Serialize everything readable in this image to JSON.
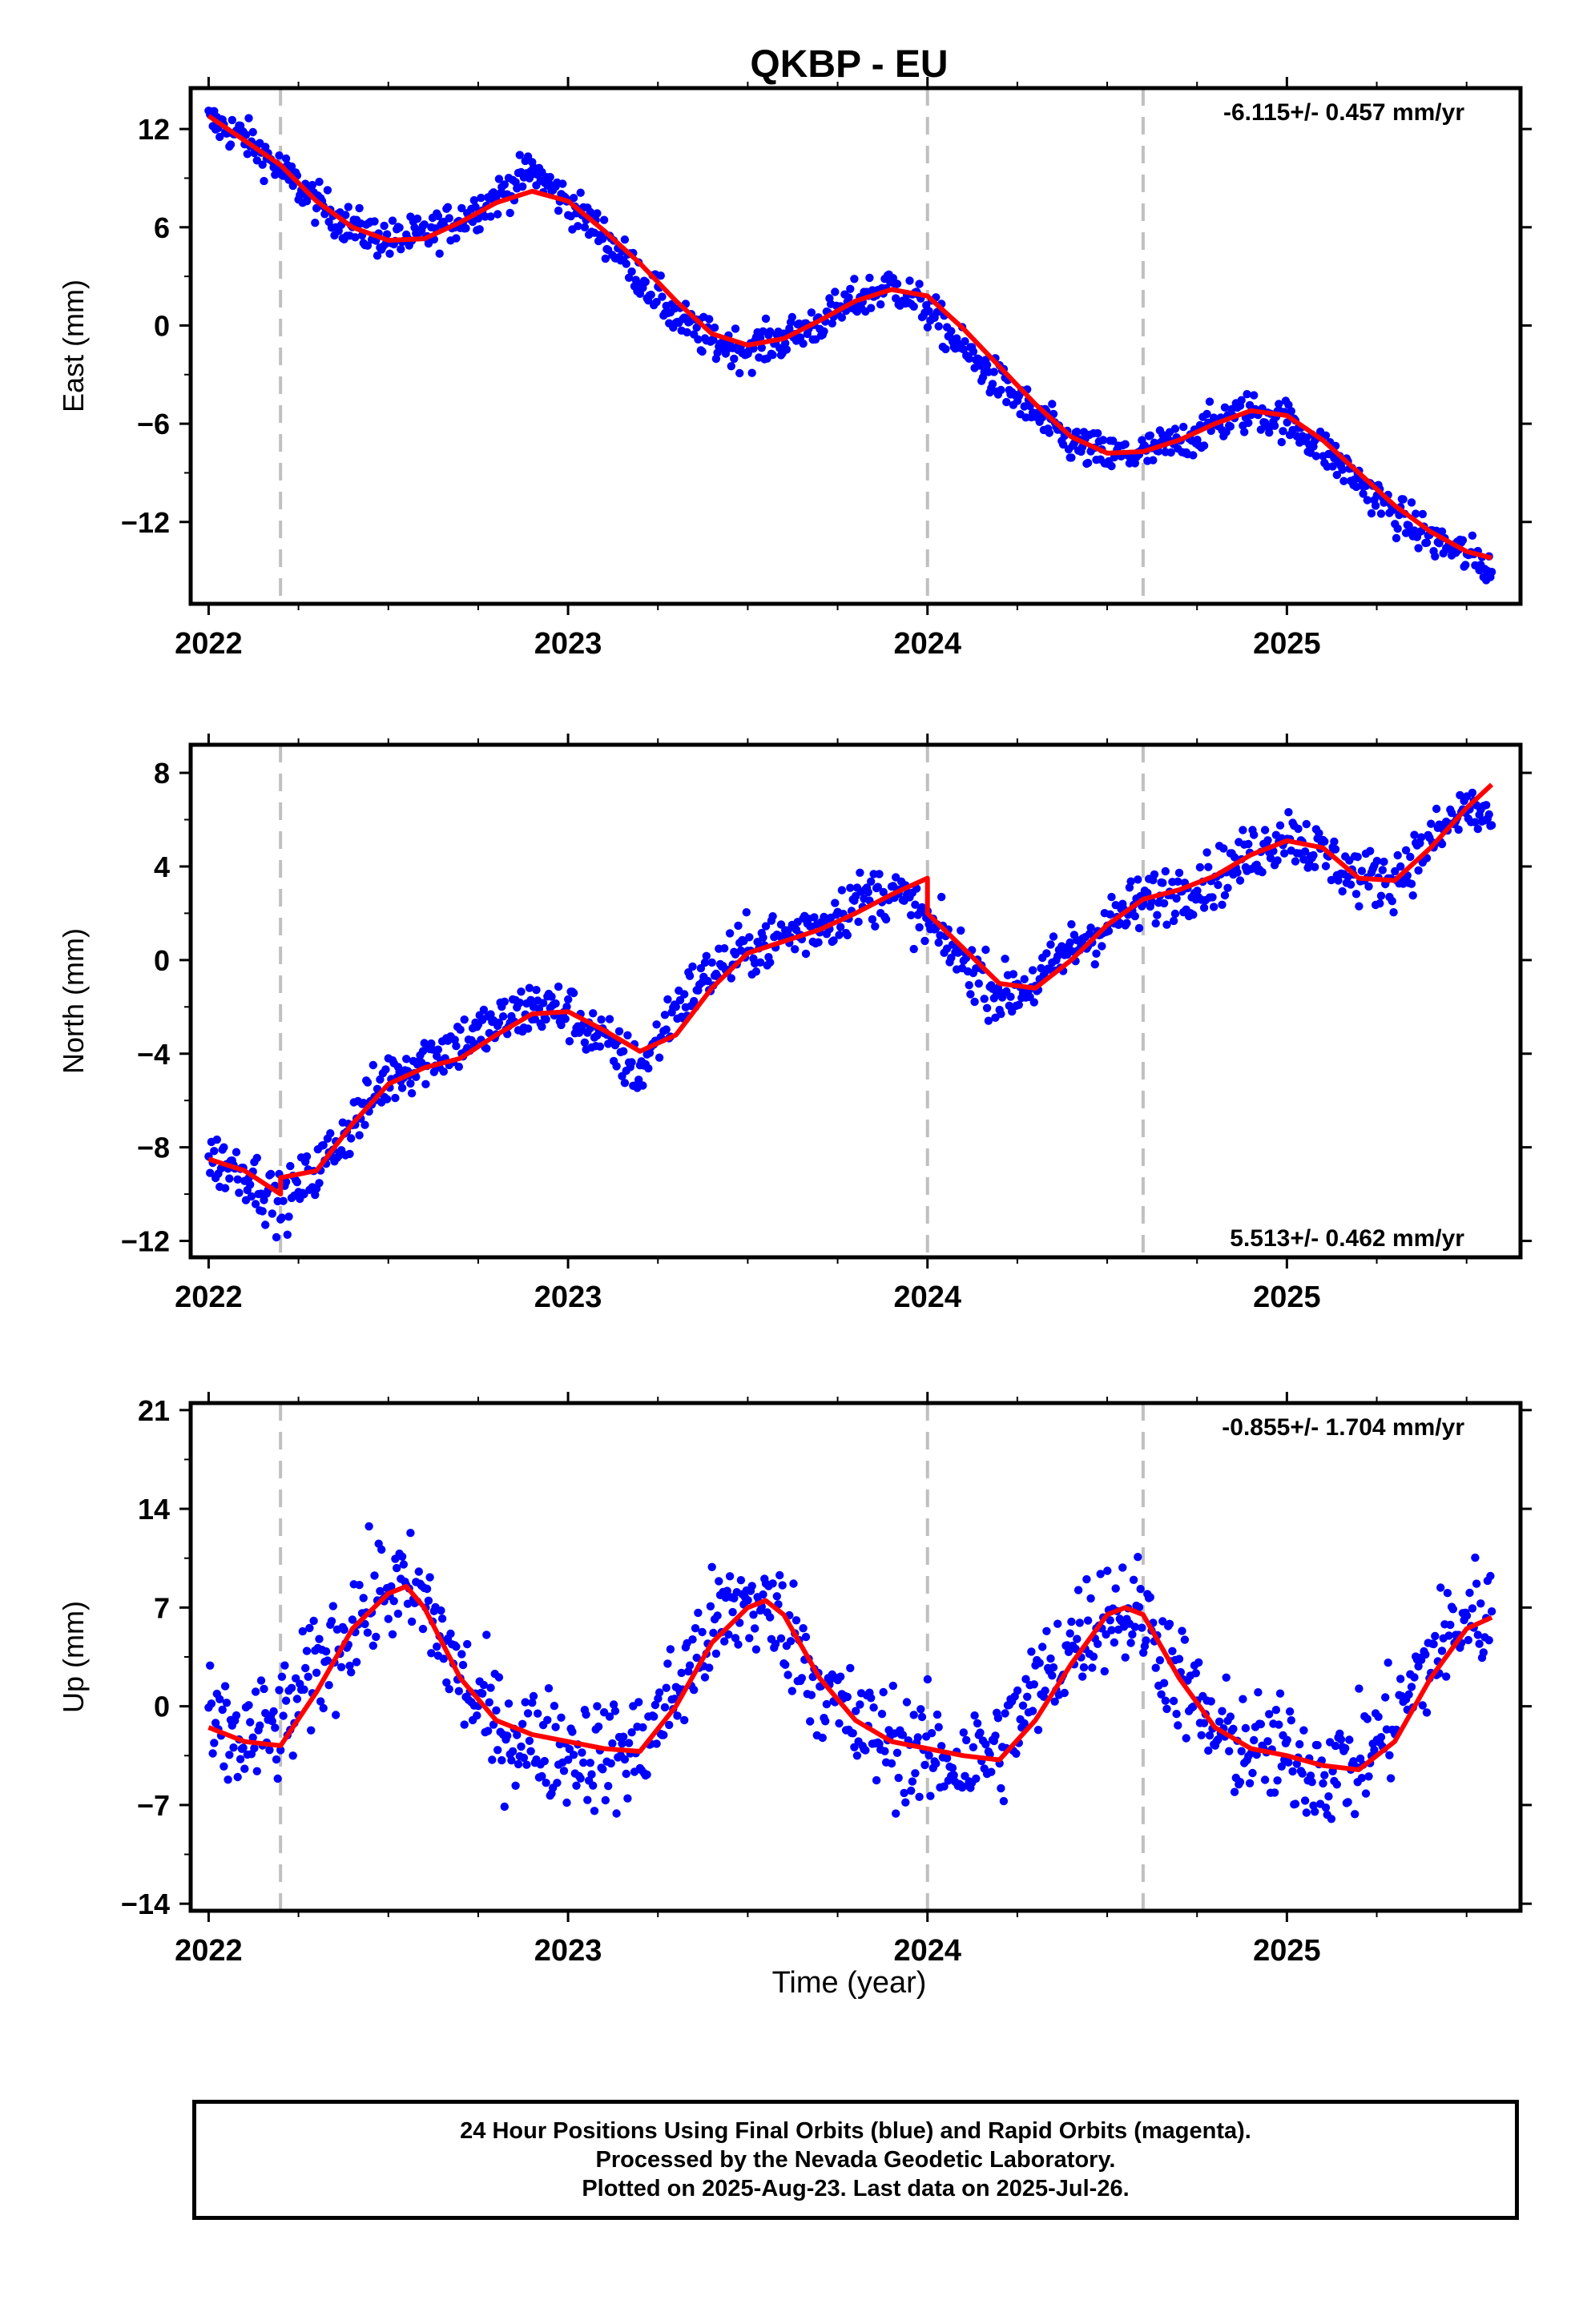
{
  "figure": {
    "title": "QKBP - EU",
    "xlabel": "Time (year)",
    "colors": {
      "data": "#0000ff",
      "model": "#ff0000",
      "event_line": "#c0c0c0",
      "frame": "#000000"
    }
  },
  "caption": {
    "line1": "24 Hour Positions Using Final Orbits (blue) and Rapid Orbits (magenta).",
    "line2": "Processed by the Nevada Geodetic Laboratory.",
    "line3": "Plotted on 2025-Aug-23. Last data on 2025-Jul-26."
  },
  "chart_data": [
    {
      "type": "scatter",
      "ylabel": "East (mm)",
      "rate_label": "-6.115+/- 0.457 mm/yr",
      "xlim": [
        2021.95,
        2025.65
      ],
      "ylim": [
        -17,
        14.5
      ],
      "yticks": [
        12,
        6,
        0,
        -6,
        -12
      ],
      "xticks": [
        2022,
        2023,
        2024,
        2025
      ],
      "event_lines": [
        2022.2,
        2024.0,
        2024.6
      ],
      "series": [
        {
          "role": "daily positions (final orbits)",
          "color": "#0000ff",
          "x": [
            2022.0,
            2022.1,
            2022.2,
            2022.3,
            2022.4,
            2022.5,
            2022.6,
            2022.7,
            2022.8,
            2022.9,
            2023.0,
            2023.1,
            2023.2,
            2023.3,
            2023.4,
            2023.5,
            2023.6,
            2023.7,
            2023.8,
            2023.9,
            2024.0,
            2024.1,
            2024.2,
            2024.3,
            2024.4,
            2024.5,
            2024.6,
            2024.7,
            2024.8,
            2024.9,
            2025.0,
            2025.1,
            2025.2,
            2025.3,
            2025.4,
            2025.5,
            2025.57
          ],
          "y": [
            12.5,
            11.5,
            9.5,
            7.5,
            6.0,
            5.2,
            5.5,
            6.5,
            7.8,
            9.5,
            7.5,
            5.5,
            3.0,
            0.5,
            -1.0,
            -1.5,
            -0.8,
            0.2,
            1.5,
            2.5,
            1.0,
            -1.5,
            -3.5,
            -5.5,
            -7.2,
            -8.0,
            -7.8,
            -7.2,
            -6.0,
            -5.2,
            -5.8,
            -7.5,
            -9.5,
            -11.5,
            -13.0,
            -14.0,
            -14.8
          ],
          "spread": 1.1,
          "points_per_year": 260
        },
        {
          "role": "model fit",
          "color": "#ff0000",
          "x": [
            2022.0,
            2022.1,
            2022.2,
            2022.3,
            2022.4,
            2022.5,
            2022.6,
            2022.7,
            2022.8,
            2022.9,
            2023.0,
            2023.1,
            2023.2,
            2023.3,
            2023.4,
            2023.5,
            2023.6,
            2023.7,
            2023.8,
            2023.9,
            2024.0,
            2024.1,
            2024.2,
            2024.3,
            2024.4,
            2024.5,
            2024.6,
            2024.7,
            2024.8,
            2024.9,
            2025.0,
            2025.1,
            2025.2,
            2025.3,
            2025.4,
            2025.5,
            2025.57
          ],
          "y": [
            12.8,
            11.3,
            9.8,
            7.6,
            6.0,
            5.2,
            5.3,
            6.3,
            7.5,
            8.2,
            7.6,
            5.8,
            3.8,
            1.5,
            -0.5,
            -1.2,
            -0.8,
            0.3,
            1.5,
            2.2,
            1.8,
            -0.2,
            -2.5,
            -4.8,
            -6.8,
            -7.8,
            -7.7,
            -7.0,
            -6.0,
            -5.2,
            -5.5,
            -7.0,
            -9.0,
            -11.0,
            -12.6,
            -13.8,
            -14.2
          ]
        }
      ]
    },
    {
      "type": "scatter",
      "ylabel": "North (mm)",
      "rate_label": "5.513+/- 0.462 mm/yr",
      "xlim": [
        2021.95,
        2025.65
      ],
      "ylim": [
        -12.7,
        9.2
      ],
      "yticks": [
        8,
        4,
        0,
        -4,
        -8,
        -12
      ],
      "xticks": [
        2022,
        2023,
        2024,
        2025
      ],
      "event_lines": [
        2022.2,
        2024.0,
        2024.6
      ],
      "series": [
        {
          "role": "daily positions (final orbits)",
          "color": "#0000ff",
          "x": [
            2022.0,
            2022.1,
            2022.2,
            2022.3,
            2022.4,
            2022.5,
            2022.6,
            2022.7,
            2022.8,
            2022.9,
            2023.0,
            2023.1,
            2023.2,
            2023.3,
            2023.4,
            2023.5,
            2023.6,
            2023.7,
            2023.8,
            2023.9,
            2024.0,
            2024.1,
            2024.2,
            2024.3,
            2024.4,
            2024.5,
            2024.6,
            2024.7,
            2024.8,
            2024.9,
            2025.0,
            2025.1,
            2025.2,
            2025.3,
            2025.4,
            2025.5,
            2025.57
          ],
          "y": [
            -8.5,
            -9.0,
            -10.5,
            -9.0,
            -7.0,
            -5.0,
            -4.2,
            -3.5,
            -2.8,
            -2.0,
            -2.2,
            -3.5,
            -4.8,
            -2.0,
            -0.5,
            0.5,
            1.0,
            1.5,
            2.5,
            3.0,
            1.5,
            0.0,
            -1.5,
            -1.0,
            0.5,
            1.5,
            2.5,
            3.0,
            3.5,
            4.5,
            5.5,
            4.5,
            3.5,
            3.5,
            5.0,
            6.5,
            6.0
          ],
          "spread": 1.1,
          "points_per_year": 260
        },
        {
          "role": "model fit",
          "color": "#ff0000",
          "x": [
            2022.0,
            2022.1,
            2022.2,
            2022.2,
            2022.3,
            2022.4,
            2022.5,
            2022.6,
            2022.7,
            2022.8,
            2022.9,
            2023.0,
            2023.1,
            2023.2,
            2023.3,
            2023.4,
            2023.5,
            2023.6,
            2023.7,
            2023.8,
            2023.9,
            2024.0,
            2024.0,
            2024.1,
            2024.2,
            2024.3,
            2024.4,
            2024.5,
            2024.6,
            2024.7,
            2024.8,
            2024.9,
            2025.0,
            2025.1,
            2025.2,
            2025.3,
            2025.4,
            2025.5,
            2025.57
          ],
          "y": [
            -8.5,
            -9.0,
            -10.0,
            -9.3,
            -9.0,
            -7.0,
            -5.3,
            -4.6,
            -4.2,
            -3.2,
            -2.3,
            -2.2,
            -3.0,
            -3.9,
            -3.2,
            -1.2,
            0.3,
            0.8,
            1.3,
            2.0,
            2.8,
            3.5,
            2.0,
            0.5,
            -1.0,
            -1.2,
            0.0,
            1.5,
            2.6,
            3.0,
            3.6,
            4.5,
            5.1,
            4.8,
            3.5,
            3.4,
            4.8,
            6.5,
            7.5
          ]
        }
      ]
    },
    {
      "type": "scatter",
      "ylabel": "Up (mm)",
      "rate_label": "-0.855+/- 1.704 mm/yr",
      "xlim": [
        2021.95,
        2025.65
      ],
      "ylim": [
        -14.5,
        21.5
      ],
      "yticks": [
        21,
        14,
        7,
        0,
        -7,
        -14
      ],
      "xticks": [
        2022,
        2023,
        2024,
        2025
      ],
      "event_lines": [
        2022.2,
        2024.0,
        2024.6
      ],
      "series": [
        {
          "role": "daily positions (final orbits)",
          "color": "#0000ff",
          "x": [
            2022.0,
            2022.1,
            2022.2,
            2022.3,
            2022.4,
            2022.5,
            2022.6,
            2022.7,
            2022.8,
            2022.9,
            2023.0,
            2023.1,
            2023.2,
            2023.3,
            2023.4,
            2023.5,
            2023.6,
            2023.7,
            2023.8,
            2023.9,
            2024.0,
            2024.1,
            2024.2,
            2024.3,
            2024.4,
            2024.5,
            2024.6,
            2024.7,
            2024.8,
            2024.9,
            2025.0,
            2025.1,
            2025.2,
            2025.3,
            2025.4,
            2025.5,
            2025.57
          ],
          "y": [
            -2.0,
            -2.5,
            -1.5,
            2.5,
            6.0,
            8.5,
            7.5,
            2.0,
            -1.5,
            -2.5,
            -3.0,
            -3.5,
            -3.0,
            1.0,
            5.5,
            7.5,
            6.0,
            1.5,
            -1.5,
            -2.5,
            -3.5,
            -4.0,
            -3.0,
            1.0,
            4.5,
            7.0,
            6.5,
            2.0,
            -2.0,
            -3.0,
            -3.5,
            -4.5,
            -4.0,
            -1.0,
            3.5,
            6.5,
            6.5
          ],
          "spread": 3.6,
          "points_per_year": 260
        },
        {
          "role": "model fit",
          "color": "#ff0000",
          "x": [
            2022.0,
            2022.1,
            2022.2,
            2022.3,
            2022.4,
            2022.5,
            2022.55,
            2022.6,
            2022.7,
            2022.8,
            2022.9,
            2023.0,
            2023.1,
            2023.2,
            2023.3,
            2023.4,
            2023.5,
            2023.55,
            2023.6,
            2023.7,
            2023.8,
            2023.9,
            2024.0,
            2024.1,
            2024.2,
            2024.3,
            2024.4,
            2024.5,
            2024.55,
            2024.6,
            2024.7,
            2024.8,
            2024.9,
            2025.0,
            2025.1,
            2025.2,
            2025.3,
            2025.4,
            2025.5,
            2025.57
          ],
          "y": [
            -1.5,
            -2.5,
            -2.8,
            1.0,
            5.5,
            8.0,
            8.5,
            7.0,
            2.0,
            -1.0,
            -2.0,
            -2.5,
            -3.0,
            -3.2,
            0.0,
            4.5,
            7.0,
            7.5,
            6.5,
            2.0,
            -1.0,
            -2.5,
            -3.0,
            -3.5,
            -3.8,
            -1.0,
            3.0,
            6.5,
            7.0,
            6.5,
            2.0,
            -1.5,
            -3.0,
            -3.5,
            -4.2,
            -4.5,
            -2.5,
            2.0,
            5.5,
            6.3
          ]
        }
      ]
    }
  ]
}
